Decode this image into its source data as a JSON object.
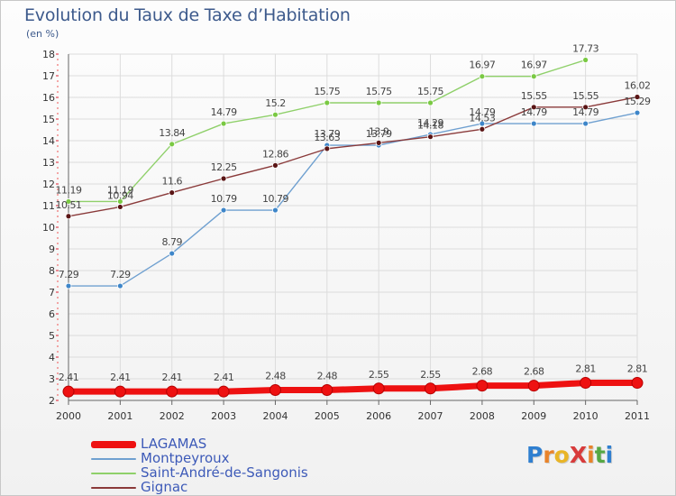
{
  "title": "Evolution du Taux de Taxe d’Habitation",
  "unit": "(en %)",
  "logo": {
    "text": "ProXiti",
    "letter_colors": [
      "#2f7fd0",
      "#e8832a",
      "#e9b527",
      "#d83b3b",
      "#e8832a",
      "#56a844",
      "#2f7fd0"
    ]
  },
  "chart_data": {
    "type": "line",
    "x": [
      2000,
      2001,
      2002,
      2003,
      2004,
      2005,
      2006,
      2007,
      2008,
      2009,
      2010,
      2011
    ],
    "ylim": [
      2,
      18
    ],
    "yticks": [
      2,
      3,
      4,
      5,
      6,
      7,
      8,
      9,
      10,
      11,
      12,
      13,
      14,
      15,
      16,
      17,
      18
    ],
    "grid": true,
    "series": [
      {
        "name": "LAGAMAS",
        "color": "#ee1111",
        "emphasis": true,
        "values": [
          2.41,
          2.41,
          2.41,
          2.41,
          2.48,
          2.48,
          2.55,
          2.55,
          2.68,
          2.68,
          2.81,
          2.81
        ],
        "labels": [
          "2.41",
          "2.41",
          "2.41",
          "2.41",
          "2.48",
          "2.48",
          "2.55",
          "2.55",
          "2.68",
          "2.68",
          "2.81",
          "2.81"
        ]
      },
      {
        "name": "Montpeyroux",
        "color": "#6fa0d0",
        "marker": "#3e86c9",
        "values": [
          7.29,
          7.29,
          8.79,
          10.79,
          10.79,
          13.79,
          13.79,
          14.29,
          14.79,
          14.79,
          14.79,
          15.29
        ],
        "labels": [
          "7.29",
          "7.29",
          "8.79",
          "10.79",
          "10.79",
          "13.79",
          "13.79",
          "14.29",
          "14.79",
          "14.79",
          "14.79",
          "15.29"
        ]
      },
      {
        "name": "Saint-André-de-Sangonis",
        "color": "#8fd06a",
        "marker": "#7ac943",
        "values": [
          11.19,
          11.19,
          13.84,
          14.79,
          15.2,
          15.75,
          15.75,
          15.75,
          16.97,
          16.97,
          17.73,
          null
        ],
        "labels": [
          "11.19",
          "11.19",
          "13.84",
          "14.79",
          "15.2",
          "15.75",
          "15.75",
          "15.75",
          "16.97",
          "16.97",
          "17.73",
          ""
        ]
      },
      {
        "name": "Gignac",
        "color": "#8a3a3a",
        "marker": "#5a1515",
        "values": [
          10.51,
          10.94,
          11.6,
          12.25,
          12.86,
          13.63,
          13.9,
          14.18,
          14.53,
          15.55,
          15.55,
          16.02
        ],
        "labels": [
          "10.51",
          "10.94",
          "11.6",
          "12.25",
          "12.86",
          "13.63",
          "13.9",
          "14.18",
          "14.53",
          "15.55",
          "15.55",
          "16.02"
        ]
      }
    ]
  }
}
